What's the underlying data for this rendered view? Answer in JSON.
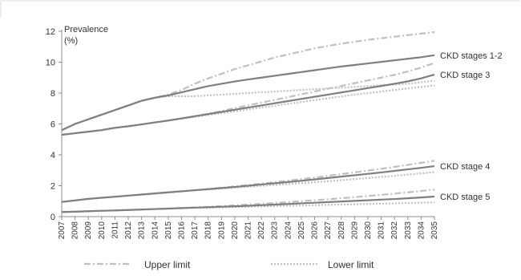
{
  "chart_data": {
    "type": "line",
    "ylabel_line1": "Prevalence",
    "ylabel_line2": "(%)",
    "ylim": [
      0,
      12
    ],
    "yticks": [
      0,
      2,
      4,
      6,
      8,
      10,
      12
    ],
    "x": [
      2007,
      2008,
      2009,
      2010,
      2011,
      2012,
      2013,
      2014,
      2015,
      2016,
      2017,
      2018,
      2019,
      2020,
      2021,
      2022,
      2023,
      2024,
      2025,
      2026,
      2027,
      2028,
      2029,
      2030,
      2031,
      2032,
      2033,
      2034,
      2035
    ],
    "x_labels": [
      "2007",
      "2008",
      "2009",
      "2010",
      "2011",
      "2012",
      "2013",
      "2014",
      "2015",
      "2016",
      "2017",
      "2018",
      "2019",
      "2020",
      "2021",
      "2022",
      "2023",
      "2024",
      "2025",
      "2026",
      "2027",
      "2028",
      "2029",
      "2030",
      "2031",
      "2032",
      "2033",
      "2034",
      "2035"
    ],
    "groups": [
      {
        "label": "CKD stages 1-2",
        "main": [
          5.6,
          6.0,
          6.3,
          6.6,
          6.9,
          7.2,
          7.5,
          7.7,
          7.85,
          8.05,
          8.25,
          8.45,
          8.6,
          8.75,
          8.88,
          9.0,
          9.12,
          9.24,
          9.36,
          9.48,
          9.6,
          9.72,
          9.82,
          9.92,
          10.02,
          10.12,
          10.22,
          10.32,
          10.45
        ],
        "upper": [
          5.6,
          6.0,
          6.3,
          6.6,
          6.9,
          7.2,
          7.5,
          7.7,
          7.9,
          8.2,
          8.6,
          8.95,
          9.25,
          9.55,
          9.8,
          10.05,
          10.3,
          10.5,
          10.7,
          10.9,
          11.05,
          11.2,
          11.32,
          11.45,
          11.55,
          11.65,
          11.75,
          11.85,
          11.95
        ],
        "lower": [
          5.6,
          6.0,
          6.3,
          6.6,
          6.9,
          7.2,
          7.5,
          7.7,
          7.8,
          7.8,
          7.8,
          7.85,
          7.9,
          7.95,
          8.0,
          8.05,
          8.1,
          8.15,
          8.2,
          8.25,
          8.3,
          8.35,
          8.4,
          8.45,
          8.5,
          8.55,
          8.6,
          8.7,
          8.8
        ]
      },
      {
        "label": "CKD stage 3",
        "main": [
          5.3,
          5.4,
          5.5,
          5.6,
          5.75,
          5.85,
          5.97,
          6.1,
          6.22,
          6.36,
          6.5,
          6.64,
          6.78,
          6.92,
          7.06,
          7.2,
          7.34,
          7.48,
          7.62,
          7.76,
          7.9,
          8.04,
          8.18,
          8.32,
          8.46,
          8.6,
          8.76,
          8.95,
          9.2
        ],
        "upper": [
          5.3,
          5.4,
          5.5,
          5.6,
          5.75,
          5.85,
          5.97,
          6.1,
          6.22,
          6.36,
          6.5,
          6.66,
          6.84,
          7.02,
          7.2,
          7.38,
          7.56,
          7.74,
          7.92,
          8.1,
          8.28,
          8.46,
          8.64,
          8.82,
          9.0,
          9.18,
          9.4,
          9.65,
          9.95
        ],
        "lower": [
          5.3,
          5.4,
          5.5,
          5.6,
          5.75,
          5.85,
          5.97,
          6.1,
          6.22,
          6.34,
          6.46,
          6.58,
          6.7,
          6.82,
          6.94,
          7.06,
          7.18,
          7.3,
          7.42,
          7.54,
          7.66,
          7.78,
          7.9,
          8.0,
          8.1,
          8.2,
          8.3,
          8.4,
          8.5
        ]
      },
      {
        "label": "CKD stage 4",
        "main": [
          0.95,
          1.05,
          1.15,
          1.22,
          1.29,
          1.36,
          1.43,
          1.5,
          1.57,
          1.64,
          1.71,
          1.78,
          1.85,
          1.92,
          2.0,
          2.08,
          2.16,
          2.24,
          2.32,
          2.41,
          2.5,
          2.59,
          2.68,
          2.77,
          2.86,
          2.96,
          3.06,
          3.16,
          3.27
        ],
        "upper": [
          0.95,
          1.05,
          1.15,
          1.22,
          1.29,
          1.36,
          1.43,
          1.5,
          1.57,
          1.64,
          1.71,
          1.79,
          1.87,
          1.96,
          2.05,
          2.14,
          2.23,
          2.33,
          2.43,
          2.53,
          2.64,
          2.75,
          2.86,
          2.98,
          3.1,
          3.22,
          3.35,
          3.48,
          3.62
        ],
        "lower": [
          0.95,
          1.05,
          1.15,
          1.22,
          1.29,
          1.36,
          1.43,
          1.5,
          1.57,
          1.63,
          1.69,
          1.75,
          1.81,
          1.87,
          1.93,
          1.99,
          2.05,
          2.11,
          2.17,
          2.23,
          2.29,
          2.36,
          2.43,
          2.5,
          2.57,
          2.64,
          2.72,
          2.8,
          2.88
        ]
      },
      {
        "label": "CKD stage 5",
        "main": [
          0.3,
          0.32,
          0.35,
          0.38,
          0.4,
          0.43,
          0.46,
          0.49,
          0.52,
          0.55,
          0.58,
          0.61,
          0.64,
          0.67,
          0.7,
          0.74,
          0.78,
          0.82,
          0.86,
          0.9,
          0.94,
          0.98,
          1.02,
          1.06,
          1.1,
          1.14,
          1.19,
          1.24,
          1.3
        ],
        "upper": [
          0.3,
          0.32,
          0.35,
          0.38,
          0.4,
          0.43,
          0.46,
          0.49,
          0.52,
          0.56,
          0.6,
          0.64,
          0.68,
          0.73,
          0.78,
          0.83,
          0.88,
          0.94,
          1.0,
          1.06,
          1.12,
          1.19,
          1.26,
          1.33,
          1.41,
          1.49,
          1.57,
          1.66,
          1.76
        ],
        "lower": [
          0.3,
          0.32,
          0.35,
          0.38,
          0.4,
          0.43,
          0.46,
          0.49,
          0.52,
          0.54,
          0.56,
          0.58,
          0.6,
          0.62,
          0.64,
          0.66,
          0.68,
          0.7,
          0.72,
          0.74,
          0.76,
          0.78,
          0.8,
          0.82,
          0.84,
          0.86,
          0.88,
          0.9,
          0.92
        ]
      }
    ],
    "legend": {
      "upper_label": "Upper limit",
      "lower_label": "Lower limit",
      "position": "bottom"
    },
    "colors": {
      "main": "#7f7f7f",
      "limits": "#c0c0c0",
      "axis": "#8c8c8c",
      "border": "#d9d9d9"
    },
    "grid": false
  }
}
